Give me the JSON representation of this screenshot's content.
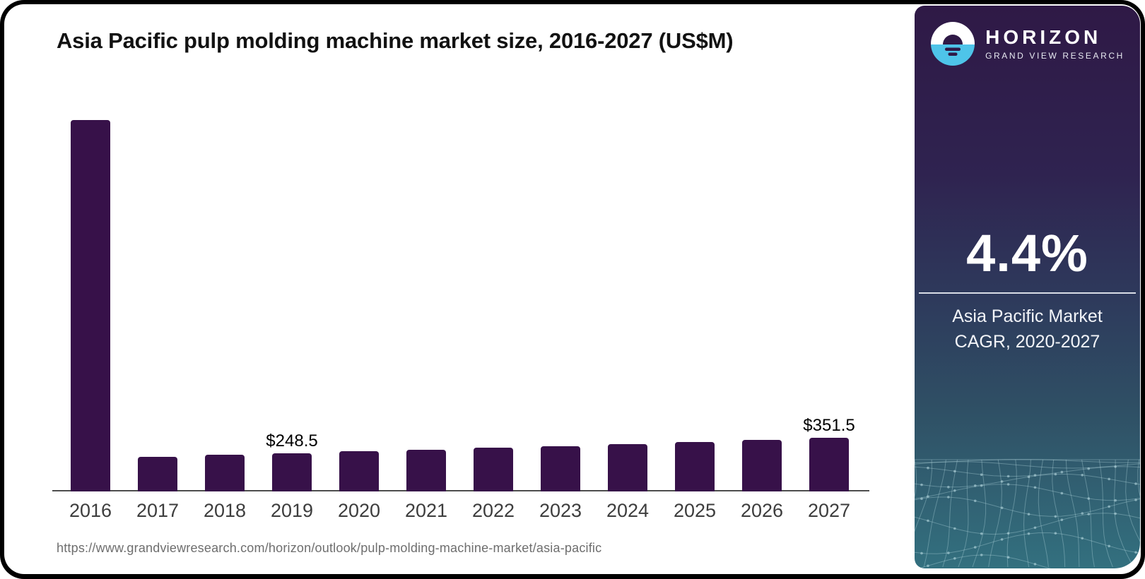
{
  "title": "Asia Pacific pulp molding machine market size, 2016-2027 (US$M)",
  "source_url": "https://www.grandviewresearch.com/horizon/outlook/pulp-molding-machine-market/asia-pacific",
  "panel": {
    "brand": "HORIZON",
    "brand_sub": "GRAND VIEW RESEARCH",
    "stat": "4.4%",
    "stat_desc_line1": "Asia Pacific Market",
    "stat_desc_line2": "CAGR, 2020-2027"
  },
  "icons": {
    "logo": "horizon-sun-logo"
  },
  "colors": {
    "bar": "#371149",
    "logo_blue": "#4EC4E9",
    "panel_top": "#2F1946",
    "panel_mid": "#2E3A5C",
    "panel_bottom": "#33707F",
    "axis": "#4d4d4d"
  },
  "chart_data": {
    "type": "bar",
    "title": "Asia Pacific pulp molding machine market size, 2016-2027 (US$M)",
    "ylabel": "US$M",
    "categories": [
      "2016",
      "2017",
      "2018",
      "2019",
      "2020",
      "2021",
      "2022",
      "2023",
      "2024",
      "2025",
      "2026",
      "2027"
    ],
    "values": [
      2460,
      226,
      239,
      248.5,
      261,
      270.5,
      284.5,
      295.5,
      309.5,
      322,
      336.5,
      351.5
    ],
    "labels": {
      "2019": "$248.5",
      "2027": "$351.5"
    },
    "bar_color": "#371149",
    "grid": false,
    "legend": false
  }
}
